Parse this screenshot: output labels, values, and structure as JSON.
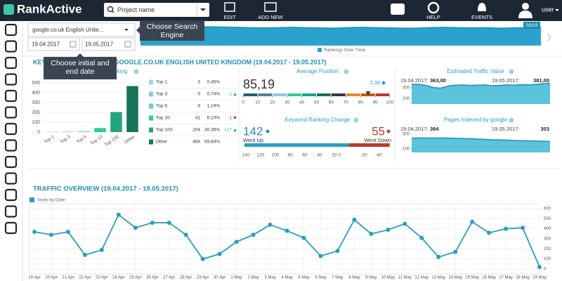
{
  "topbar": {
    "logo": "RankActive",
    "search_placeholder": "Project name",
    "buttons": [
      "EDIT",
      "ADD NEW",
      "HELP",
      "EVENTS"
    ],
    "user": "user"
  },
  "filters": {
    "engine": "google.co.uk English Unite...",
    "start_date": "19.04.2017",
    "end_date": "19.05.2017",
    "rankings": {
      "type": "area",
      "legend": "Rankings Over Time",
      "badge": "05/19",
      "ylim": [
        0,
        70
      ],
      "values": [
        60,
        62,
        63,
        64,
        64,
        65,
        64,
        63,
        62,
        61,
        62,
        63,
        62,
        61,
        60,
        62,
        63,
        62,
        61,
        60,
        60,
        62,
        63,
        62,
        61,
        62,
        60,
        61,
        62,
        63
      ]
    }
  },
  "tooltips": {
    "engine": "Choose Search Engine",
    "dates": "Choose initial and end date"
  },
  "ranking": {
    "title": "KEYWORD RANKING FOR GOOGLE.CO.UK ENGLISH UNITED KINGDOM (19.04.2017 - 19.05.2017)",
    "chart": {
      "type": "bar",
      "title": "Keyword Ranking",
      "categories": [
        "Top 1",
        "Top 3",
        "Top 5",
        "Top 10",
        "Top 100",
        "Other"
      ],
      "values": [
        3,
        5,
        8,
        41,
        204,
        468
      ],
      "colors": [
        "#9fd6e4",
        "#7fcfe0",
        "#62c9de",
        "#2ecc9a",
        "#23a67f",
        "#17735a"
      ],
      "ylim": [
        0,
        500
      ],
      "yticks": [
        0,
        100,
        200,
        300,
        400,
        500
      ],
      "grid": true
    },
    "table": {
      "rows": [
        {
          "label": "Top 1:",
          "count": 3,
          "share": "0,45%"
        },
        {
          "label": "Top 3:",
          "count": 5,
          "share": "0,74%",
          "change": "-1",
          "trend": "up"
        },
        {
          "label": "Top 5:",
          "count": 8,
          "share": "1,19%"
        },
        {
          "label": "Top 10:",
          "count": 41,
          "share": "6,10%",
          "change": "-1",
          "trend": "down"
        },
        {
          "label": "Top 100:",
          "count": 204,
          "share": "30,36%",
          "change": "+17",
          "trend": "up"
        },
        {
          "label": "Other",
          "count": 468,
          "share": "69,64%"
        }
      ]
    }
  },
  "average_position": {
    "title": "Average Position",
    "value": 85.19,
    "value_label": "85,19",
    "change": 2.38,
    "change_label": "2,38",
    "xlim": [
      0,
      100
    ],
    "xticks": [
      0,
      10,
      20,
      30,
      40,
      50,
      60,
      70,
      80,
      90,
      100
    ],
    "segment_colors": [
      "#1f5f7a",
      "#5a7f95",
      "#8ec9e0",
      "#3ec7a2",
      "#1aa58a",
      "#17735a",
      "#2f3b48",
      "#e08a2c",
      "#d35400",
      "#c0392b"
    ]
  },
  "ranking_change": {
    "title": "Keyword Ranking Change",
    "up": 142,
    "up_label": "Went Up",
    "down": 55,
    "down_label": "Went Down",
    "up_ticks": [
      140,
      120,
      100,
      80,
      60,
      40,
      20
    ],
    "down_ticks": [
      0,
      -20,
      -40
    ]
  },
  "traffic_value": {
    "type": "area",
    "title": "Estimated Traffic Value",
    "start_date": "19.04.2017:",
    "start_value": "363,00",
    "end_date": "19.05.2017:",
    "end_value": "381,00",
    "ylim": [
      0,
      400
    ],
    "yticks": [
      100,
      300
    ],
    "values": [
      363,
      360,
      340,
      300,
      290,
      330,
      345,
      350,
      340,
      345,
      350,
      335,
      340,
      350,
      345,
      355,
      350,
      360,
      370,
      381
    ]
  },
  "pages_indexed": {
    "type": "area",
    "title": "Pages Indexed by google",
    "start_date": "19.04.2017:",
    "start_value": "394",
    "end_date": "19.05.2017:",
    "end_value": "303",
    "ylim": [
      0,
      600
    ],
    "yticks": [
      100,
      500
    ],
    "values": [
      394,
      400,
      398,
      395,
      400,
      396,
      390,
      385,
      380,
      370,
      360,
      350,
      345,
      340,
      330,
      325,
      320,
      315,
      310,
      303
    ]
  },
  "traffic": {
    "chart_data": {
      "type": "line",
      "title": "TRAFFIC OVERVIEW (19.04.2017 - 19.05.2017)",
      "categories": [
        "19 Apr",
        "20 Apr",
        "21 Apr",
        "22 Apr",
        "23 Apr",
        "24 Apr",
        "25 Apr",
        "26 Apr",
        "27 Apr",
        "28 Apr",
        "29 Apr",
        "30 Apr",
        "1 May",
        "2 May",
        "3 May",
        "4 May",
        "5 May",
        "6 May",
        "7 May",
        "8 May",
        "9 May",
        "10 May",
        "11 May",
        "12 May",
        "13 May",
        "14 May",
        "15 May",
        "16 May",
        "17 May",
        "18 May",
        "19 May"
      ],
      "series": [
        {
          "name": "Visits by Date",
          "color": "#2a9fbd",
          "values": [
            370,
            340,
            370,
            140,
            190,
            540,
            410,
            460,
            460,
            340,
            100,
            150,
            270,
            340,
            440,
            380,
            310,
            130,
            180,
            490,
            350,
            390,
            450,
            310,
            120,
            170,
            470,
            360,
            400,
            410,
            20
          ]
        }
      ],
      "ylim": [
        0,
        600
      ],
      "yticks": [
        0,
        100,
        200,
        300,
        400,
        500,
        600
      ],
      "grid": true
    }
  }
}
